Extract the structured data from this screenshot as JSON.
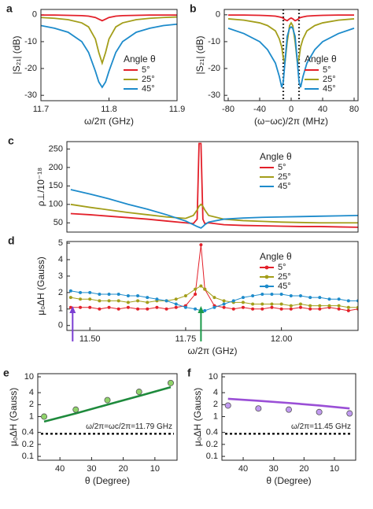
{
  "chart_data": [
    {
      "type": "line",
      "label": "a",
      "xlabel": "ω/2π (GHz)",
      "ylabel": "|S₂₁| (dB)",
      "legend_title": "Angle θ",
      "legend": "lower right",
      "xlim": [
        11.7,
        11.9
      ],
      "xticks": [
        11.7,
        11.8,
        11.9
      ],
      "ylim": [
        -32,
        2
      ],
      "yticks": [
        0,
        -10,
        -20,
        -30
      ],
      "x": [
        11.7,
        11.72,
        11.74,
        11.76,
        11.77,
        11.78,
        11.785,
        11.79,
        11.795,
        11.8,
        11.81,
        11.82,
        11.84,
        11.86,
        11.88,
        11.9
      ],
      "series": [
        {
          "name": "5°",
          "color": "#e3202a",
          "mode": "line",
          "values": [
            -0.1,
            -0.1,
            -0.2,
            -0.3,
            -0.5,
            -1,
            -1.6,
            -2.2,
            -1.6,
            -1,
            -0.5,
            -0.3,
            -0.2,
            -0.1,
            -0.1,
            -0.1
          ]
        },
        {
          "name": "25°",
          "color": "#a39e1a",
          "mode": "line",
          "values": [
            -1,
            -1.3,
            -1.8,
            -3,
            -4.5,
            -9,
            -14,
            -18,
            -14,
            -9,
            -4.5,
            -3,
            -1.8,
            -1.3,
            -1,
            -0.8
          ]
        },
        {
          "name": "45°",
          "color": "#1d8bcb",
          "mode": "line",
          "values": [
            -4,
            -5,
            -6.5,
            -10,
            -14,
            -21,
            -25,
            -27,
            -25,
            -21,
            -14,
            -10,
            -6.5,
            -5,
            -4,
            -3.5
          ]
        }
      ]
    },
    {
      "type": "line",
      "label": "b",
      "xlabel": "(ω−ωc)/2π (MHz)",
      "ylabel": "|S₂₁| (dB)",
      "legend_title": "Angle θ",
      "legend": "lower right",
      "xlim": [
        -85,
        85
      ],
      "xticks": [
        -80,
        -40,
        0,
        40,
        80
      ],
      "ylim": [
        -32,
        2
      ],
      "yticks": [
        0,
        -10,
        -20,
        -30
      ],
      "vlines": [
        -10,
        10
      ],
      "x": [
        -80,
        -60,
        -40,
        -30,
        -20,
        -15,
        -12,
        -10,
        -8,
        -5,
        -2,
        0,
        2,
        5,
        8,
        10,
        12,
        15,
        20,
        30,
        40,
        60,
        80
      ],
      "series": [
        {
          "name": "5°",
          "color": "#e3202a",
          "mode": "line",
          "values": [
            -0.1,
            -0.1,
            -0.2,
            -0.3,
            -0.5,
            -0.8,
            -1,
            -1.3,
            -1.8,
            -2.2,
            -1.5,
            -1.2,
            -1.5,
            -2.2,
            -1.8,
            -1.3,
            -1,
            -0.8,
            -0.5,
            -0.3,
            -0.2,
            -0.1,
            -0.1
          ]
        },
        {
          "name": "25°",
          "color": "#a39e1a",
          "mode": "line",
          "values": [
            -1.5,
            -2,
            -3,
            -4,
            -6,
            -9,
            -12,
            -16,
            -18,
            -10,
            -4,
            -3,
            -4,
            -10,
            -18,
            -16,
            -12,
            -9,
            -6,
            -4,
            -3,
            -2,
            -1.5
          ]
        },
        {
          "name": "45°",
          "color": "#1d8bcb",
          "mode": "line",
          "values": [
            -5,
            -7,
            -10,
            -13,
            -18,
            -23,
            -27,
            -25,
            -18,
            -8,
            -5,
            -4.5,
            -5,
            -8,
            -18,
            -25,
            -27,
            -23,
            -18,
            -13,
            -10,
            -7,
            -5
          ]
        }
      ]
    },
    {
      "type": "line",
      "label": "c",
      "ylabel": "ρ⊥/10⁻¹⁸",
      "legend_title": "Angle θ",
      "legend": "upper right",
      "xlim": [
        11.44,
        12.2
      ],
      "ylim": [
        25,
        270
      ],
      "yticks": [
        50,
        100,
        150,
        200,
        250
      ],
      "x": [
        11.45,
        11.5,
        11.55,
        11.6,
        11.65,
        11.7,
        11.75,
        11.77,
        11.78,
        11.785,
        11.79,
        11.795,
        11.8,
        11.81,
        11.85,
        11.9,
        11.95,
        12,
        12.05,
        12.1,
        12.15,
        12.2
      ],
      "series": [
        {
          "name": "5°",
          "color": "#e3202a",
          "mode": "line",
          "values": [
            75,
            72,
            68,
            64,
            60,
            55,
            50,
            48,
            60,
            265,
            265,
            60,
            48,
            50,
            45,
            43,
            42,
            41,
            40,
            40,
            39,
            38
          ]
        },
        {
          "name": "25°",
          "color": "#a39e1a",
          "mode": "line",
          "values": [
            100,
            92,
            85,
            78,
            72,
            66,
            62,
            70,
            85,
            95,
            100,
            95,
            85,
            70,
            60,
            56,
            54,
            52,
            51,
            50,
            50,
            50
          ]
        },
        {
          "name": "45°",
          "color": "#1d8bcb",
          "mode": "line",
          "values": [
            140,
            128,
            115,
            100,
            87,
            72,
            55,
            45,
            40,
            38,
            36,
            40,
            45,
            52,
            60,
            63,
            65,
            66,
            67,
            68,
            69,
            70
          ]
        }
      ]
    },
    {
      "type": "line",
      "label": "d",
      "xlabel": "ω/2π (GHz)",
      "ylabel": "μ₀ΔH (Gauss)",
      "legend_title": "Angle θ",
      "legend": "upper right",
      "xlim": [
        11.44,
        12.2
      ],
      "xticks": [
        {
          "value": 11.5,
          "label": "11.50"
        },
        {
          "value": 11.75,
          "label": "11.75"
        },
        {
          "value": 12,
          "label": "12.00"
        }
      ],
      "ylim": [
        -0.3,
        5.1
      ],
      "yticks": [
        0,
        1,
        2,
        3,
        4,
        5
      ],
      "arrows": [
        {
          "x": 11.455,
          "color": "#7b3fd3"
        },
        {
          "x": 11.79,
          "color": "#1b9a4a"
        }
      ],
      "x": [
        11.45,
        11.475,
        11.5,
        11.525,
        11.55,
        11.575,
        11.6,
        11.625,
        11.65,
        11.675,
        11.7,
        11.725,
        11.75,
        11.775,
        11.79,
        11.8,
        11.825,
        11.85,
        11.875,
        11.9,
        11.925,
        11.95,
        11.975,
        12,
        12.025,
        12.05,
        12.075,
        12.1,
        12.125,
        12.15,
        12.175,
        12.2
      ],
      "series": [
        {
          "name": "5°",
          "color": "#e3202a",
          "mode": "line+markers",
          "values": [
            1.1,
            1.1,
            1.1,
            1.0,
            1.1,
            1.0,
            1.1,
            1.0,
            1.0,
            1.1,
            1.0,
            1.1,
            1.2,
            1.9,
            4.9,
            2.2,
            1.2,
            1.1,
            1.0,
            1.1,
            1.0,
            1.0,
            1.1,
            1.0,
            1.0,
            1.1,
            1.0,
            1.0,
            1.1,
            1.0,
            0.9,
            1.0
          ]
        },
        {
          "name": "25°",
          "color": "#a39e1a",
          "mode": "line+markers",
          "values": [
            1.7,
            1.6,
            1.6,
            1.5,
            1.5,
            1.5,
            1.4,
            1.5,
            1.4,
            1.5,
            1.5,
            1.6,
            1.8,
            2.2,
            2.4,
            2.2,
            1.7,
            1.5,
            1.4,
            1.4,
            1.3,
            1.3,
            1.3,
            1.3,
            1.2,
            1.3,
            1.2,
            1.2,
            1.2,
            1.2,
            1.1,
            1.1
          ]
        },
        {
          "name": "45°",
          "color": "#1d8bcb",
          "mode": "line+markers",
          "values": [
            2.1,
            2.0,
            2.0,
            1.9,
            1.9,
            1.9,
            1.8,
            1.8,
            1.7,
            1.6,
            1.5,
            1.3,
            1.1,
            1.0,
            0.9,
            0.9,
            1.1,
            1.3,
            1.5,
            1.7,
            1.8,
            1.9,
            1.9,
            1.9,
            1.8,
            1.8,
            1.7,
            1.7,
            1.6,
            1.6,
            1.5,
            1.5
          ]
        }
      ]
    },
    {
      "type": "line",
      "label": "e",
      "xlabel": "θ (Degree)",
      "ylabel": "μ₀ΔH (Gauss)",
      "ylog": true,
      "xlim": [
        47,
        3
      ],
      "xticks": [
        40,
        30,
        20,
        10
      ],
      "ylim": [
        0.08,
        12
      ],
      "yticks": [
        0.1,
        0.2,
        0.4,
        1,
        2,
        4,
        10
      ],
      "hline": 0.37,
      "annotation": "ω/2π=ωc/2π=11.79 GHz",
      "x": [
        45,
        35,
        25,
        15,
        5
      ],
      "series": [
        {
          "color": "#1e8a3c",
          "mode": "line",
          "values": [
            0.75,
            1.2,
            2.0,
            3.3,
            5.5
          ]
        },
        {
          "color": "#8fd36a",
          "mode": "markers",
          "values": [
            1.0,
            1.5,
            2.6,
            4.2,
            7
          ]
        }
      ]
    },
    {
      "type": "line",
      "label": "f",
      "xlabel": "θ (Degree)",
      "ylabel": "μ₀ΔH (Gauss)",
      "ylog": true,
      "xlim": [
        47,
        3
      ],
      "xticks": [
        40,
        30,
        20,
        10
      ],
      "ylim": [
        0.08,
        12
      ],
      "yticks": [
        0.1,
        0.2,
        0.4,
        1,
        2,
        4,
        10
      ],
      "hline": 0.37,
      "annotation": "ω/2π=11.45 GHz",
      "x": [
        45,
        35,
        25,
        15,
        5
      ],
      "series": [
        {
          "color": "#9a4fd6",
          "mode": "line",
          "values": [
            2.8,
            2.5,
            2.2,
            1.9,
            1.6
          ]
        },
        {
          "color": "#c19af0",
          "mode": "markers",
          "values": [
            1.9,
            1.6,
            1.5,
            1.3,
            1.2
          ]
        }
      ]
    }
  ]
}
